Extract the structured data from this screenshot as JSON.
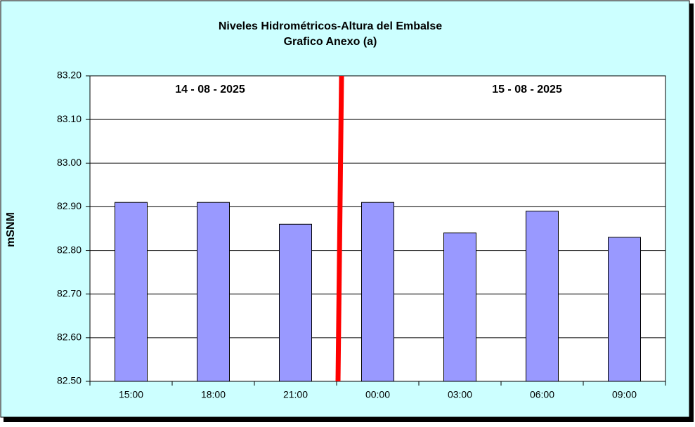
{
  "chart_data": {
    "type": "bar",
    "title": "Niveles Hidrométricos-Altura del Embalse",
    "subtitle": "Grafico Anexo (a)",
    "y_label": "mSNM",
    "annotations": [
      "14 - 08 - 2025",
      "15 - 08 - 2025"
    ],
    "categories": [
      "15:00",
      "18:00",
      "21:00",
      "00:00",
      "03:00",
      "06:00",
      "09:00"
    ],
    "values": [
      82.91,
      82.91,
      82.86,
      82.91,
      82.84,
      82.89,
      82.83
    ],
    "color": "#9999ff",
    "ylim": [
      82.5,
      83.2
    ],
    "yticks": [
      {
        "value": 82.5,
        "label": "82.50"
      },
      {
        "value": 82.6,
        "label": "82.60"
      },
      {
        "value": 82.7,
        "label": "82.70"
      },
      {
        "value": 82.8,
        "label": "82.80"
      },
      {
        "value": 82.9,
        "label": "82.90"
      },
      {
        "value": 83.0,
        "label": "83.00"
      },
      {
        "value": 83.1,
        "label": "83.10"
      },
      {
        "value": 83.2,
        "label": "83.20"
      }
    ],
    "grid": true
  }
}
